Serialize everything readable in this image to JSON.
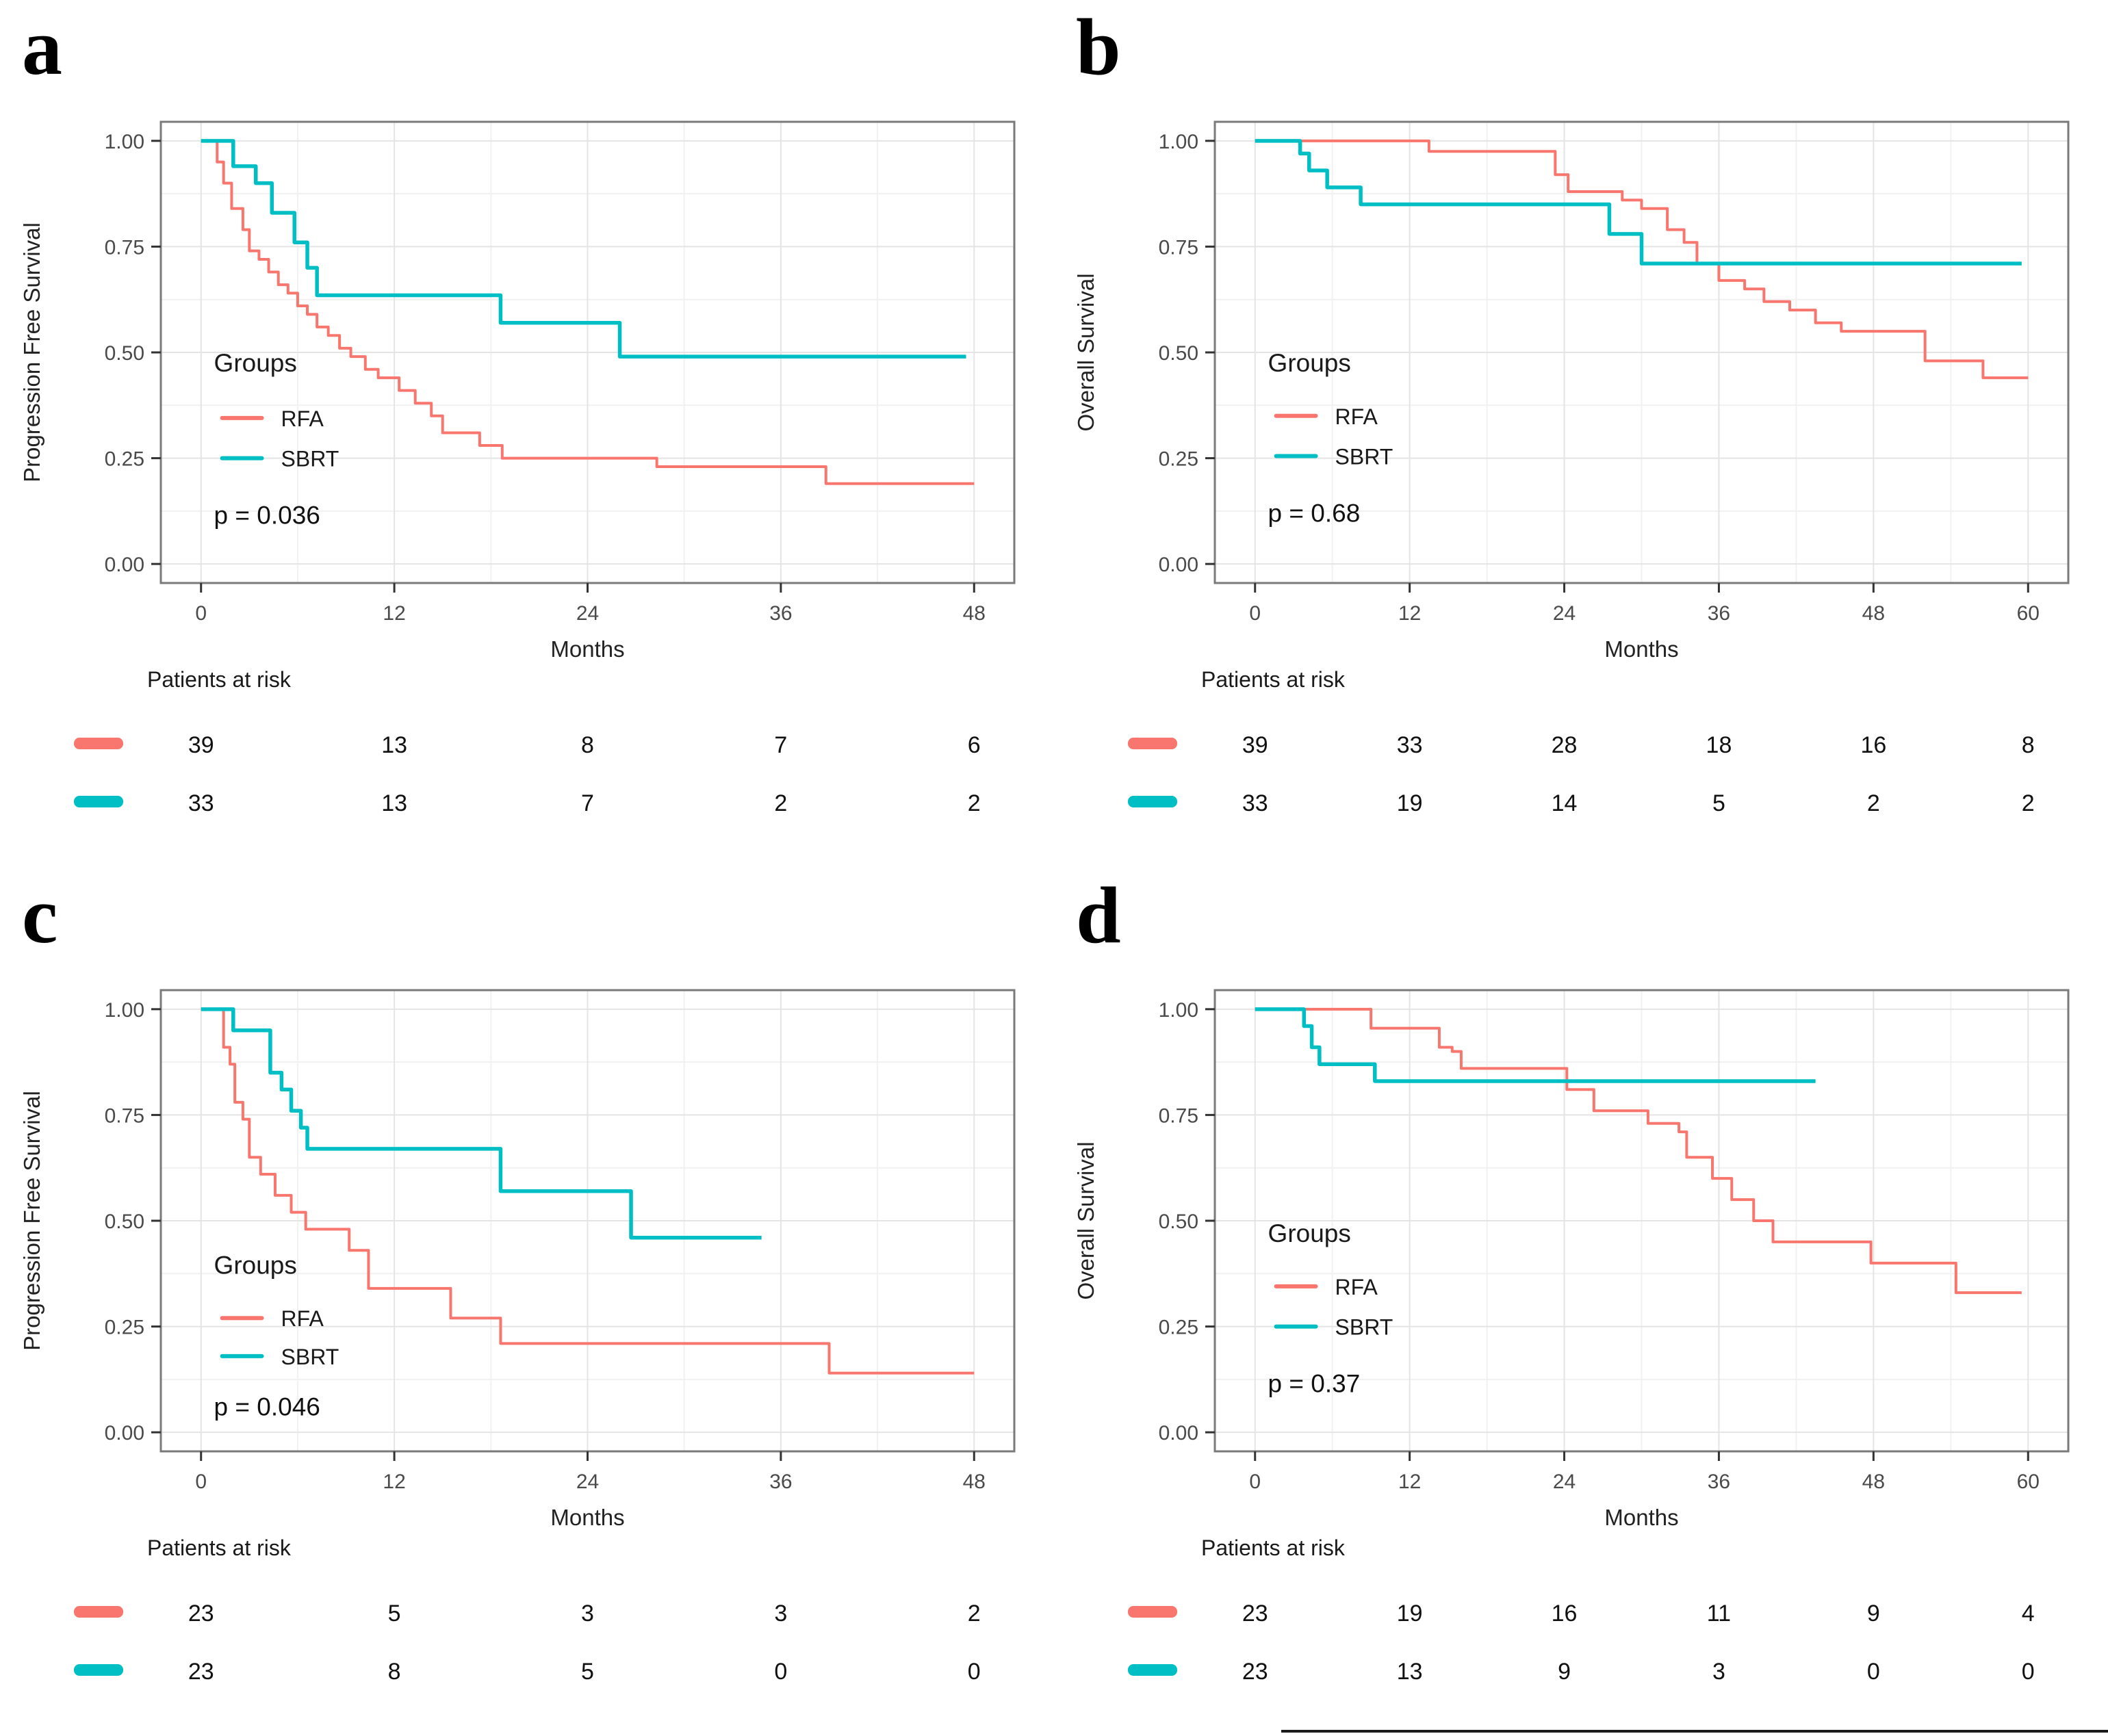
{
  "colors": {
    "rfa": "#F8766D",
    "sbrt": "#00BFC4"
  },
  "chart_data": [
    {
      "type": "line",
      "km_style": "kaplan-meier-step",
      "panel_label": "a",
      "xlabel": "Months",
      "ylabel": "Progression Free Survival",
      "x_ticks": [
        0,
        12,
        24,
        36,
        48
      ],
      "y_ticks": [
        "1.00",
        "0.75",
        "0.50",
        "0.25",
        "0.00"
      ],
      "xlim": [
        0,
        48
      ],
      "ylim": [
        0,
        1
      ],
      "grid": "on",
      "legend": {
        "title": "Groups",
        "x_month": 0.8,
        "title_y": 0.455,
        "entries": [
          {
            "name": "RFA",
            "color": "#F8766D",
            "y": 0.345
          },
          {
            "name": "SBRT",
            "color": "#00BFC4",
            "y": 0.25
          }
        ]
      },
      "p_value": {
        "label": "p = 0.036",
        "y": 0.095
      },
      "series": [
        {
          "name": "RFA",
          "color": "#F8766D",
          "steps": [
            [
              0,
              1.0
            ],
            [
              1,
              0.95
            ],
            [
              1.4,
              0.9
            ],
            [
              1.9,
              0.84
            ],
            [
              2.6,
              0.79
            ],
            [
              3,
              0.74
            ],
            [
              3.6,
              0.72
            ],
            [
              4.2,
              0.69
            ],
            [
              4.8,
              0.66
            ],
            [
              5.4,
              0.64
            ],
            [
              6,
              0.61
            ],
            [
              6.6,
              0.59
            ],
            [
              7.2,
              0.56
            ],
            [
              7.9,
              0.54
            ],
            [
              8.6,
              0.51
            ],
            [
              9.3,
              0.49
            ],
            [
              10.2,
              0.46
            ],
            [
              11,
              0.44
            ],
            [
              12.3,
              0.41
            ],
            [
              13.3,
              0.38
            ],
            [
              14.3,
              0.35
            ],
            [
              15,
              0.31
            ],
            [
              17.3,
              0.28
            ],
            [
              18.7,
              0.25
            ],
            [
              28.3,
              0.23
            ],
            [
              38.8,
              0.19
            ],
            [
              48,
              0.19
            ]
          ]
        },
        {
          "name": "SBRT",
          "color": "#00BFC4",
          "steps": [
            [
              0,
              1.0
            ],
            [
              2,
              0.94
            ],
            [
              3.4,
              0.9
            ],
            [
              4.4,
              0.83
            ],
            [
              5.8,
              0.76
            ],
            [
              6.6,
              0.7
            ],
            [
              7.2,
              0.635
            ],
            [
              18.6,
              0.57
            ],
            [
              26,
              0.49
            ],
            [
              47.5,
              0.49
            ]
          ]
        }
      ],
      "risk_table": {
        "header": "Patients at risk",
        "columns": [
          0,
          12,
          24,
          36,
          48
        ],
        "rows": [
          {
            "name": "RFA",
            "color": "#F8766D",
            "counts": [
              "39",
              "13",
              "8",
              "7",
              "6"
            ]
          },
          {
            "name": "SBRT",
            "color": "#00BFC4",
            "counts": [
              "33",
              "13",
              "7",
              "2",
              "2"
            ]
          }
        ]
      }
    },
    {
      "type": "line",
      "km_style": "kaplan-meier-step",
      "panel_label": "b",
      "xlabel": "Months",
      "ylabel": "Overall Survival",
      "x_ticks": [
        0,
        12,
        24,
        36,
        48,
        60
      ],
      "y_ticks": [
        "1.00",
        "0.75",
        "0.50",
        "0.25",
        "0.00"
      ],
      "xlim": [
        0,
        60
      ],
      "ylim": [
        0,
        1
      ],
      "grid": "on",
      "legend": {
        "title": "Groups",
        "x_month": 1.0,
        "title_y": 0.455,
        "entries": [
          {
            "name": "RFA",
            "color": "#F8766D",
            "y": 0.35
          },
          {
            "name": "SBRT",
            "color": "#00BFC4",
            "y": 0.255
          }
        ]
      },
      "p_value": {
        "label": "p = 0.68",
        "y": 0.1
      },
      "series": [
        {
          "name": "RFA",
          "color": "#F8766D",
          "steps": [
            [
              0,
              1.0
            ],
            [
              13.5,
              0.975
            ],
            [
              23.3,
              0.92
            ],
            [
              24.3,
              0.88
            ],
            [
              28.5,
              0.86
            ],
            [
              30,
              0.84
            ],
            [
              32,
              0.79
            ],
            [
              33.3,
              0.76
            ],
            [
              34.3,
              0.71
            ],
            [
              36,
              0.67
            ],
            [
              38,
              0.65
            ],
            [
              39.5,
              0.62
            ],
            [
              41.5,
              0.6
            ],
            [
              43.5,
              0.57
            ],
            [
              45.5,
              0.55
            ],
            [
              52,
              0.48
            ],
            [
              56.5,
              0.44
            ],
            [
              60,
              0.44
            ]
          ]
        },
        {
          "name": "SBRT",
          "color": "#00BFC4",
          "steps": [
            [
              0,
              1.0
            ],
            [
              3.5,
              0.97
            ],
            [
              4.2,
              0.93
            ],
            [
              5.6,
              0.89
            ],
            [
              8.2,
              0.85
            ],
            [
              27.5,
              0.78
            ],
            [
              30,
              0.71
            ],
            [
              59.5,
              0.71
            ]
          ]
        }
      ],
      "risk_table": {
        "header": "Patients at risk",
        "columns": [
          0,
          12,
          24,
          36,
          48,
          60
        ],
        "rows": [
          {
            "name": "RFA",
            "color": "#F8766D",
            "counts": [
              "39",
              "33",
              "28",
              "18",
              "16",
              "8"
            ]
          },
          {
            "name": "SBRT",
            "color": "#00BFC4",
            "counts": [
              "33",
              "19",
              "14",
              "5",
              "2",
              "2"
            ]
          }
        ]
      }
    },
    {
      "type": "line",
      "km_style": "kaplan-meier-step",
      "panel_label": "c",
      "xlabel": "Months",
      "ylabel": "Progression Free Survival",
      "x_ticks": [
        0,
        12,
        24,
        36,
        48
      ],
      "y_ticks": [
        "1.00",
        "0.75",
        "0.50",
        "0.25",
        "0.00"
      ],
      "xlim": [
        0,
        48
      ],
      "ylim": [
        0,
        1
      ],
      "grid": "on",
      "legend": {
        "title": "Groups",
        "x_month": 0.8,
        "title_y": 0.375,
        "entries": [
          {
            "name": "RFA",
            "color": "#F8766D",
            "y": 0.27
          },
          {
            "name": "SBRT",
            "color": "#00BFC4",
            "y": 0.18
          }
        ]
      },
      "p_value": {
        "label": "p = 0.046",
        "y": 0.04
      },
      "series": [
        {
          "name": "RFA",
          "color": "#F8766D",
          "steps": [
            [
              0,
              1.0
            ],
            [
              1.4,
              0.91
            ],
            [
              1.8,
              0.87
            ],
            [
              2.1,
              0.78
            ],
            [
              2.6,
              0.74
            ],
            [
              3,
              0.65
            ],
            [
              3.7,
              0.61
            ],
            [
              4.6,
              0.56
            ],
            [
              5.6,
              0.52
            ],
            [
              6.5,
              0.48
            ],
            [
              9.2,
              0.43
            ],
            [
              10.4,
              0.34
            ],
            [
              15.5,
              0.27
            ],
            [
              18.6,
              0.21
            ],
            [
              39,
              0.14
            ],
            [
              48,
              0.14
            ]
          ]
        },
        {
          "name": "SBRT",
          "color": "#00BFC4",
          "steps": [
            [
              0,
              1.0
            ],
            [
              2,
              0.95
            ],
            [
              4.3,
              0.85
            ],
            [
              5,
              0.81
            ],
            [
              5.6,
              0.76
            ],
            [
              6.2,
              0.72
            ],
            [
              6.6,
              0.67
            ],
            [
              18.6,
              0.57
            ],
            [
              26.7,
              0.46
            ],
            [
              34.8,
              0.46
            ]
          ]
        }
      ],
      "risk_table": {
        "header": "Patients at risk",
        "columns": [
          0,
          12,
          24,
          36,
          48
        ],
        "rows": [
          {
            "name": "RFA",
            "color": "#F8766D",
            "counts": [
              "23",
              "5",
              "3",
              "3",
              "2"
            ]
          },
          {
            "name": "SBRT",
            "color": "#00BFC4",
            "counts": [
              "23",
              "8",
              "5",
              "0",
              "0"
            ]
          }
        ]
      }
    },
    {
      "type": "line",
      "km_style": "kaplan-meier-step",
      "panel_label": "d",
      "xlabel": "Months",
      "ylabel": "Overall Survival",
      "x_ticks": [
        0,
        12,
        24,
        36,
        48,
        60
      ],
      "y_ticks": [
        "1.00",
        "0.75",
        "0.50",
        "0.25",
        "0.00"
      ],
      "xlim": [
        0,
        60
      ],
      "ylim": [
        0,
        1
      ],
      "grid": "on",
      "legend": {
        "title": "Groups",
        "x_month": 1.0,
        "title_y": 0.45,
        "entries": [
          {
            "name": "RFA",
            "color": "#F8766D",
            "y": 0.345
          },
          {
            "name": "SBRT",
            "color": "#00BFC4",
            "y": 0.25
          }
        ]
      },
      "p_value": {
        "label": "p = 0.37",
        "y": 0.095
      },
      "series": [
        {
          "name": "RFA",
          "color": "#F8766D",
          "steps": [
            [
              0,
              1.0
            ],
            [
              9,
              0.955
            ],
            [
              14.3,
              0.91
            ],
            [
              15.3,
              0.9
            ],
            [
              16,
              0.86
            ],
            [
              24.2,
              0.81
            ],
            [
              26.3,
              0.76
            ],
            [
              30.5,
              0.73
            ],
            [
              32.9,
              0.71
            ],
            [
              33.5,
              0.65
            ],
            [
              35.5,
              0.6
            ],
            [
              37,
              0.55
            ],
            [
              38.7,
              0.5
            ],
            [
              40.2,
              0.45
            ],
            [
              47.8,
              0.4
            ],
            [
              54.4,
              0.33
            ],
            [
              59.5,
              0.33
            ]
          ]
        },
        {
          "name": "SBRT",
          "color": "#00BFC4",
          "steps": [
            [
              0,
              1.0
            ],
            [
              3.8,
              0.96
            ],
            [
              4.4,
              0.91
            ],
            [
              5,
              0.87
            ],
            [
              9.3,
              0.83
            ],
            [
              43.5,
              0.83
            ]
          ]
        }
      ],
      "risk_table": {
        "header": "Patients at risk",
        "columns": [
          0,
          12,
          24,
          36,
          48,
          60
        ],
        "rows": [
          {
            "name": "RFA",
            "color": "#F8766D",
            "counts": [
              "23",
              "19",
              "16",
              "11",
              "9",
              "4"
            ]
          },
          {
            "name": "SBRT",
            "color": "#00BFC4",
            "counts": [
              "23",
              "13",
              "9",
              "3",
              "0",
              "0"
            ]
          }
        ]
      }
    }
  ]
}
